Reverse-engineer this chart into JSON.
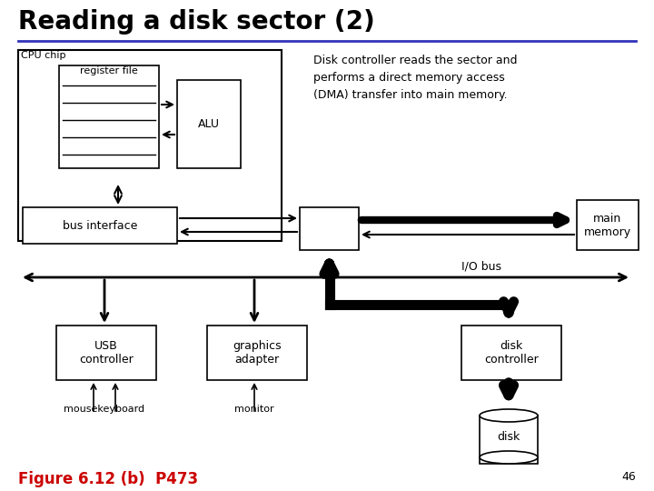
{
  "title": "Reading a disk sector (2)",
  "bg_color": "#ffffff",
  "text_color": "#000000",
  "blue_line_color": "#3333bb",
  "red_text_color": "#cc0000",
  "description_line1": "Disk controller reads the sector and",
  "description_line2": "performs a direct memory access",
  "description_line3": "(DMA) transfer into main memory.",
  "figure_label": "Figure 6.12 (b)  P473",
  "page_number": "46",
  "cpu_chip_label": "CPU chip",
  "register_file_label": "register file",
  "alu_label": "ALU",
  "bus_interface_label": "bus interface",
  "main_memory_label": "main\nmemory",
  "io_bus_label": "I/O bus",
  "usb_label": "USB\ncontroller",
  "graphics_label": "graphics\nadapter",
  "disk_ctrl_label": "disk\ncontroller",
  "disk_label": "disk",
  "mousekeyboard_label": "mousekeyboard",
  "monitor_label": "monitor",
  "title_size": 20,
  "body_size": 9,
  "small_size": 8
}
